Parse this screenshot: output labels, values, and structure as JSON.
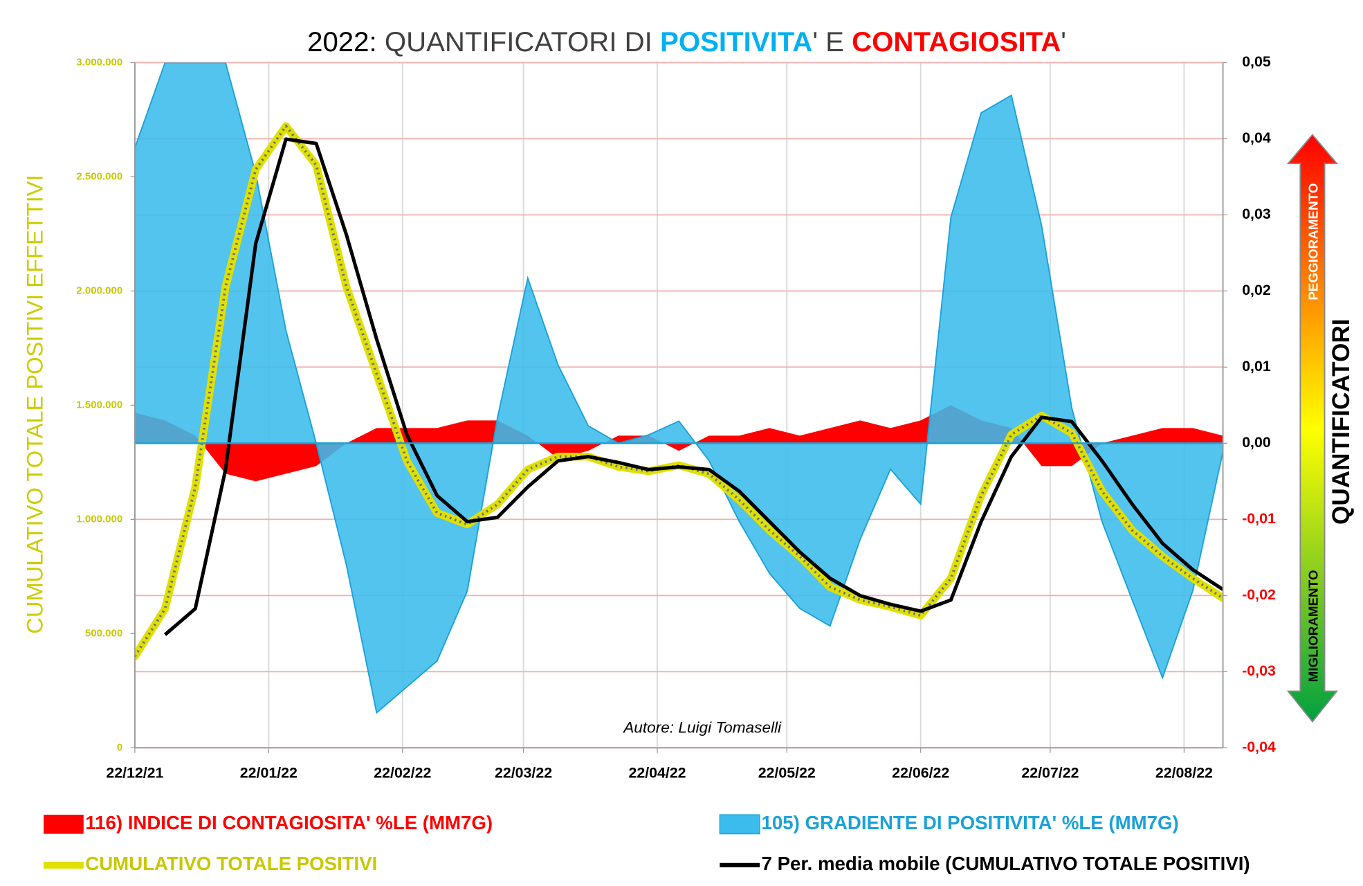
{
  "chart_data": {
    "type": "line",
    "title": [
      {
        "text": "2022:",
        "color": "#000000",
        "bold": false
      },
      {
        "text": " QUANTIFICATORI DI ",
        "color": "#404040",
        "bold": false
      },
      {
        "text": "POSITIVITA",
        "color": "#00b0f0",
        "bold": true
      },
      {
        "text": "' E ",
        "color": "#404040",
        "bold": false
      },
      {
        "text": "CONTAGIOSITA",
        "color": "#ff0000",
        "bold": true
      },
      {
        "text": "'",
        "color": "#404040",
        "bold": false
      }
    ],
    "y_label": "CUMULATIVO TOTALE POSITIVI EFFETTIVI",
    "y2_label": "QUANTIFICATORI",
    "arrow_labels": {
      "up": "PEGGIORAMENTO",
      "down": "MIGLIORAMENTO"
    },
    "annotation": "Autore: Luigi Tomaselli",
    "x": [
      "22/12/21",
      "29/12/21",
      "05/01/22",
      "12/01/22",
      "19/01/22",
      "26/01/22",
      "02/02/22",
      "09/02/22",
      "16/02/22",
      "23/02/22",
      "02/03/22",
      "09/03/22",
      "16/03/22",
      "23/03/22",
      "30/03/22",
      "06/04/22",
      "13/04/22",
      "20/04/22",
      "27/04/22",
      "04/05/22",
      "11/05/22",
      "18/05/22",
      "25/05/22",
      "01/06/22",
      "08/06/22",
      "15/06/22",
      "22/06/22",
      "29/06/22",
      "06/07/22",
      "13/07/22",
      "20/07/22",
      "27/07/22",
      "03/08/22",
      "10/08/22",
      "17/08/22",
      "24/08/22",
      "31/08/22"
    ],
    "xlim": [
      "22/12/21",
      "31/08/22"
    ],
    "xticks": [
      "22/12/21",
      "22/01/22",
      "22/02/22",
      "22/03/22",
      "22/04/22",
      "22/05/22",
      "22/06/22",
      "22/07/22",
      "22/08/22"
    ],
    "ylim": [
      0,
      3000000
    ],
    "yticks": [
      0,
      {
        "value": 500000,
        "label": "500.000"
      },
      {
        "value": 1000000,
        "label": "1.000.000"
      },
      {
        "value": 1500000,
        "label": "1.500.000"
      },
      {
        "value": 2000000,
        "label": "2.000.000"
      },
      {
        "value": 2500000,
        "label": "2.500.000"
      },
      {
        "value": 3000000,
        "label": "3.000.000"
      }
    ],
    "y2lim": [
      -0.04,
      0.05
    ],
    "y2ticks": [
      {
        "value": -0.04,
        "label": "-0,04"
      },
      {
        "value": -0.03,
        "label": "-0,03"
      },
      {
        "value": -0.02,
        "label": "-0,02"
      },
      {
        "value": -0.01,
        "label": "-0,01"
      },
      {
        "value": 0,
        "label": "0,00"
      },
      {
        "value": 0.01,
        "label": "0,01"
      },
      {
        "value": 0.02,
        "label": "0,02"
      },
      {
        "value": 0.03,
        "label": "0,03"
      },
      {
        "value": 0.04,
        "label": "0,04"
      },
      {
        "value": 0.05,
        "label": "0,05"
      }
    ],
    "y2tick_negative_color": "#ff0000",
    "grid": true,
    "series": [
      {
        "name": "116) INDICE DI CONTAGIOSITA' %LE  (MM7G)",
        "kind": "area",
        "axis": "y2",
        "color": "#ff0000",
        "legend_color": "#ff0000",
        "values": [
          0.004,
          0.003,
          0.001,
          -0.004,
          -0.005,
          -0.004,
          -0.003,
          0,
          0.002,
          0.002,
          0.002,
          0.003,
          0.003,
          0.001,
          -0.002,
          -0.001,
          0.001,
          0.001,
          -0.001,
          0.001,
          0.001,
          0.002,
          0.001,
          0.002,
          0.003,
          0.002,
          0.003,
          0.005,
          0.003,
          0.002,
          -0.003,
          -0.003,
          0,
          0.001,
          0.002,
          0.002,
          0.001
        ]
      },
      {
        "name": "105) GRADIENTE DI POSITIVITA' %LE (MM7G)",
        "kind": "area",
        "axis": "y2",
        "color": "#3bbcec",
        "legend_color": "#1ba1d8",
        "values": [
          0.0388,
          0.05,
          0.05,
          0.05,
          0.0354,
          0.0148,
          0,
          -0.016,
          -0.0354,
          -0.032,
          -0.0286,
          -0.0194,
          0.0034,
          0.0217,
          0.0103,
          0.0023,
          0,
          0.0011,
          0.0029,
          -0.0023,
          -0.0103,
          -0.0171,
          -0.0217,
          -0.024,
          -0.0126,
          -0.0034,
          -0.008,
          0.0297,
          0.0434,
          0.0457,
          0.0286,
          0.0046,
          -0.0103,
          -0.0206,
          -0.0308,
          -0.0194,
          -0.0011
        ]
      },
      {
        "name": "CUMULATIVO TOTALE POSITIVI",
        "kind": "line",
        "axis": "y",
        "color": "#e0e000",
        "legend_color": "#c8c800",
        "values": [
          400000,
          609000,
          1142000,
          2018000,
          2532000,
          2722000,
          2551000,
          2018000,
          1637000,
          1256000,
          1028000,
          978000,
          1066000,
          1218000,
          1275000,
          1275000,
          1230000,
          1211000,
          1237000,
          1199000,
          1085000,
          952000,
          838000,
          704000,
          647000,
          617000,
          579000,
          742000,
          1104000,
          1371000,
          1454000,
          1378000,
          1123000,
          952000,
          838000,
          742000,
          655000
        ]
      },
      {
        "name": "7 Per. media mobile (CUMULATIVO TOTALE POSITIVI)",
        "kind": "line",
        "axis": "y",
        "color": "#000000",
        "legend_color": "#000000",
        "values": [
          null,
          495000,
          609000,
          1218000,
          2208000,
          2665000,
          2646000,
          2246000,
          1789000,
          1371000,
          1104000,
          990000,
          1009000,
          1142000,
          1256000,
          1275000,
          1249000,
          1218000,
          1230000,
          1218000,
          1123000,
          990000,
          857000,
          742000,
          666000,
          628000,
          598000,
          647000,
          990000,
          1275000,
          1447000,
          1428000,
          1256000,
          1066000,
          895000,
          780000,
          693000
        ]
      }
    ]
  }
}
